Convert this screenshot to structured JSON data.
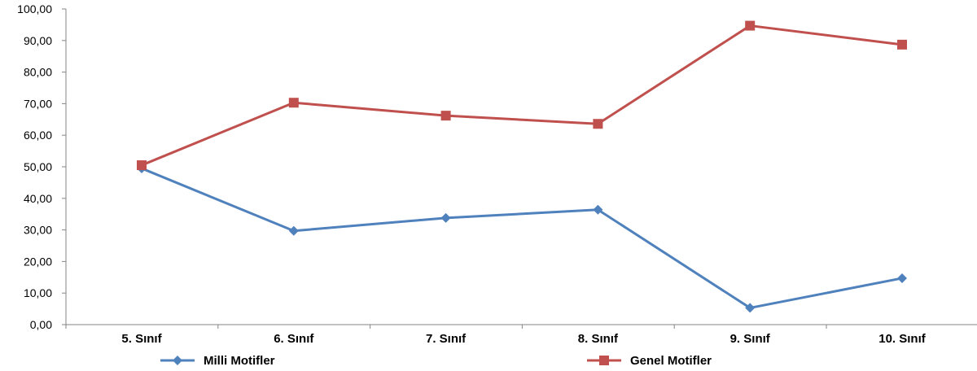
{
  "chart_data": {
    "type": "line",
    "title": "",
    "xlabel": "",
    "ylabel": "",
    "categories": [
      "5. Sınıf",
      "6. Sınıf",
      "7. Sınıf",
      "8. Sınıf",
      "9. Sınıf",
      "10. Sınıf"
    ],
    "ylim": [
      0,
      100
    ],
    "yticks": [
      "0,00",
      "10,00",
      "20,00",
      "30,00",
      "40,00",
      "50,00",
      "60,00",
      "70,00",
      "80,00",
      "90,00",
      "100,00"
    ],
    "grid": false,
    "legend_position": "bottom",
    "series": [
      {
        "name": "Milli Motifler",
        "color": "#4F81BD",
        "marker": "diamond",
        "values": [
          49.5,
          29.7,
          33.8,
          36.4,
          5.3,
          14.7
        ]
      },
      {
        "name": "Genel Motifler",
        "color": "#C0504D",
        "marker": "square",
        "values": [
          50.5,
          70.3,
          66.2,
          63.6,
          94.7,
          88.7
        ]
      }
    ]
  }
}
